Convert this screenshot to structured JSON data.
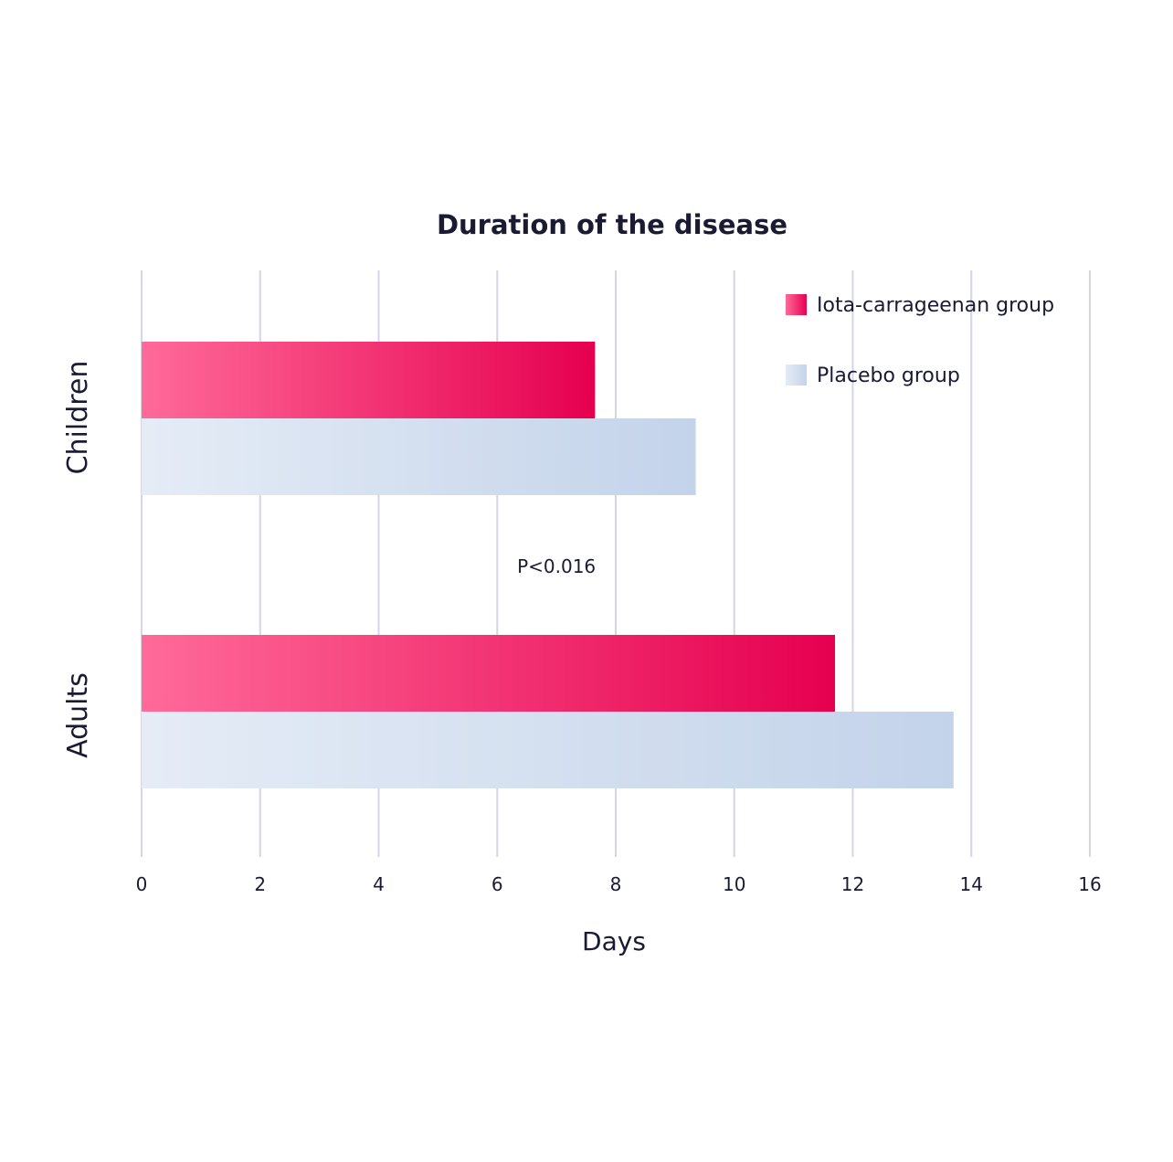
{
  "chart_data": {
    "type": "bar",
    "orientation": "horizontal",
    "title": "Duration of the disease",
    "xlabel": "Days",
    "ylabel": "",
    "xlim": [
      0,
      16
    ],
    "xticks": [
      0,
      2,
      4,
      6,
      8,
      10,
      12,
      14,
      16
    ],
    "grid": true,
    "legend_position": "top-right",
    "categories": [
      "Children",
      "Adults"
    ],
    "series": [
      {
        "name": "Iota-carrageenan group",
        "values": [
          7.65,
          11.7
        ],
        "color": "#e6004f"
      },
      {
        "name": "Placebo group",
        "values": [
          9.35,
          13.7
        ],
        "color": "#c3d3ea"
      }
    ],
    "annotations": [
      {
        "text": "P<0.016",
        "x": 7,
        "between": [
          "Children",
          "Adults"
        ]
      }
    ]
  }
}
